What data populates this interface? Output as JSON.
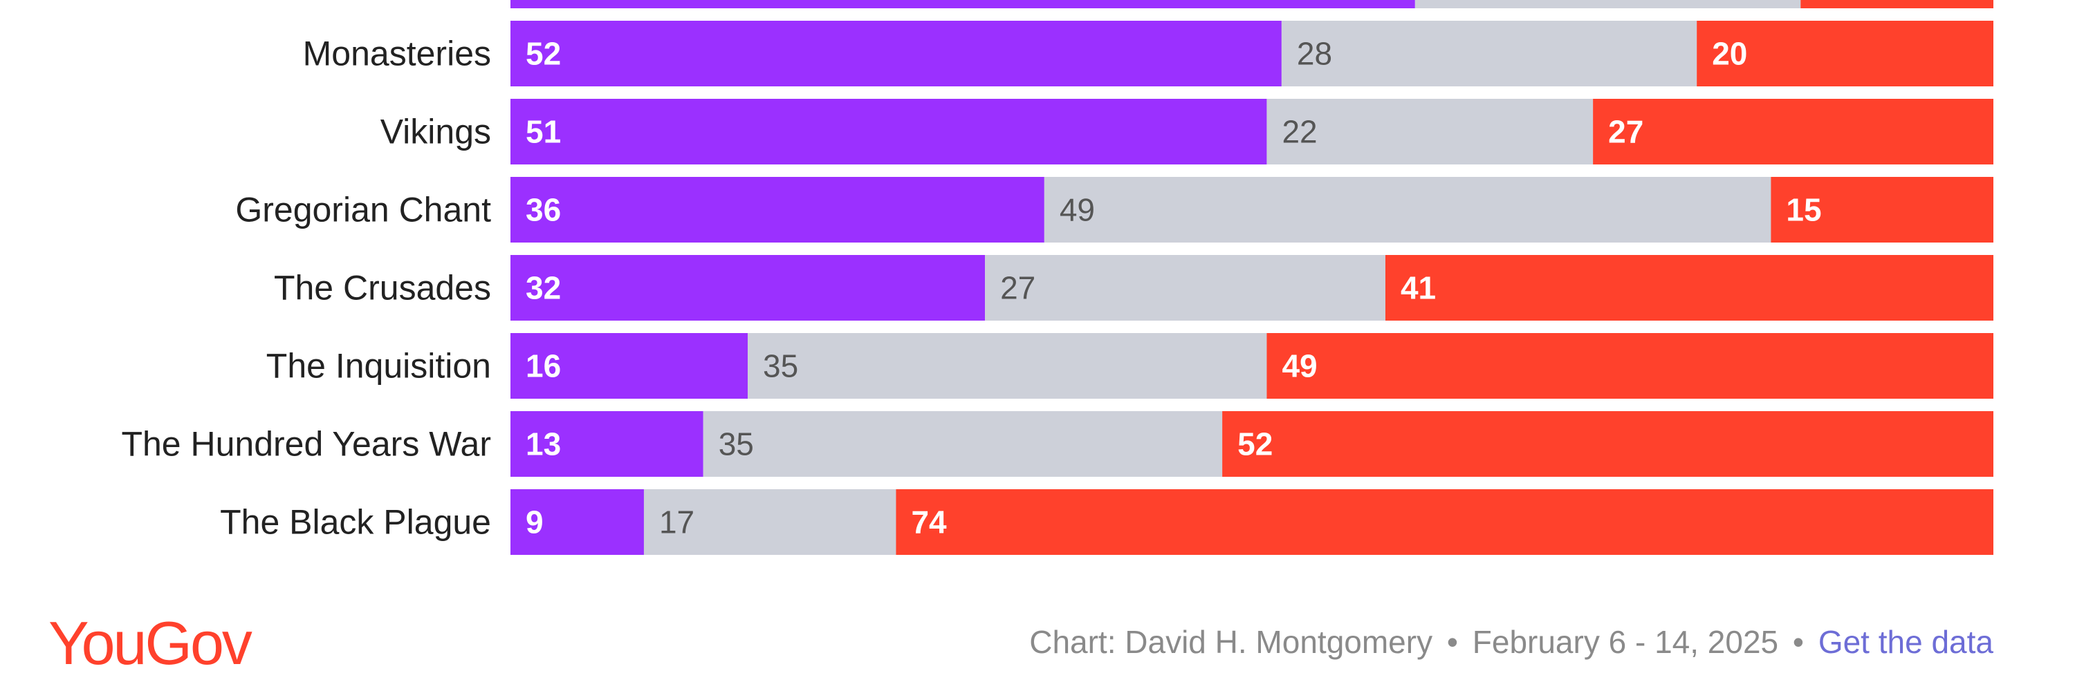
{
  "chart_data": {
    "type": "bar",
    "orientation": "horizontal",
    "stacked": true,
    "categories": [
      "",
      "Monasteries",
      "Vikings",
      "Gregorian Chant",
      "The Crusades",
      "The Inquisition",
      "The Hundred Years War",
      "The Black Plague"
    ],
    "series": [
      {
        "values": [
          61,
          52,
          51,
          36,
          32,
          16,
          13,
          9
        ],
        "color": "#9b30ff",
        "label_color": "#ffffff"
      },
      {
        "values": [
          26,
          28,
          22,
          49,
          27,
          35,
          35,
          17
        ],
        "color": "#cdd0d9",
        "label_color": "#555555"
      },
      {
        "values": [
          13,
          20,
          27,
          15,
          41,
          49,
          52,
          74
        ],
        "color": "#ff412c",
        "label_color": "#ffffff"
      }
    ],
    "value_labels_shown": [
      false,
      true,
      true,
      true,
      true,
      true,
      true,
      true
    ],
    "xlim": [
      0,
      100
    ],
    "grid": false,
    "legend": "none"
  },
  "footer": {
    "logo_text": "YouGov",
    "credit": "Chart: David H. Montgomery",
    "separator": "•",
    "dates": "February 6 - 14, 2025",
    "link": "Get the data"
  }
}
